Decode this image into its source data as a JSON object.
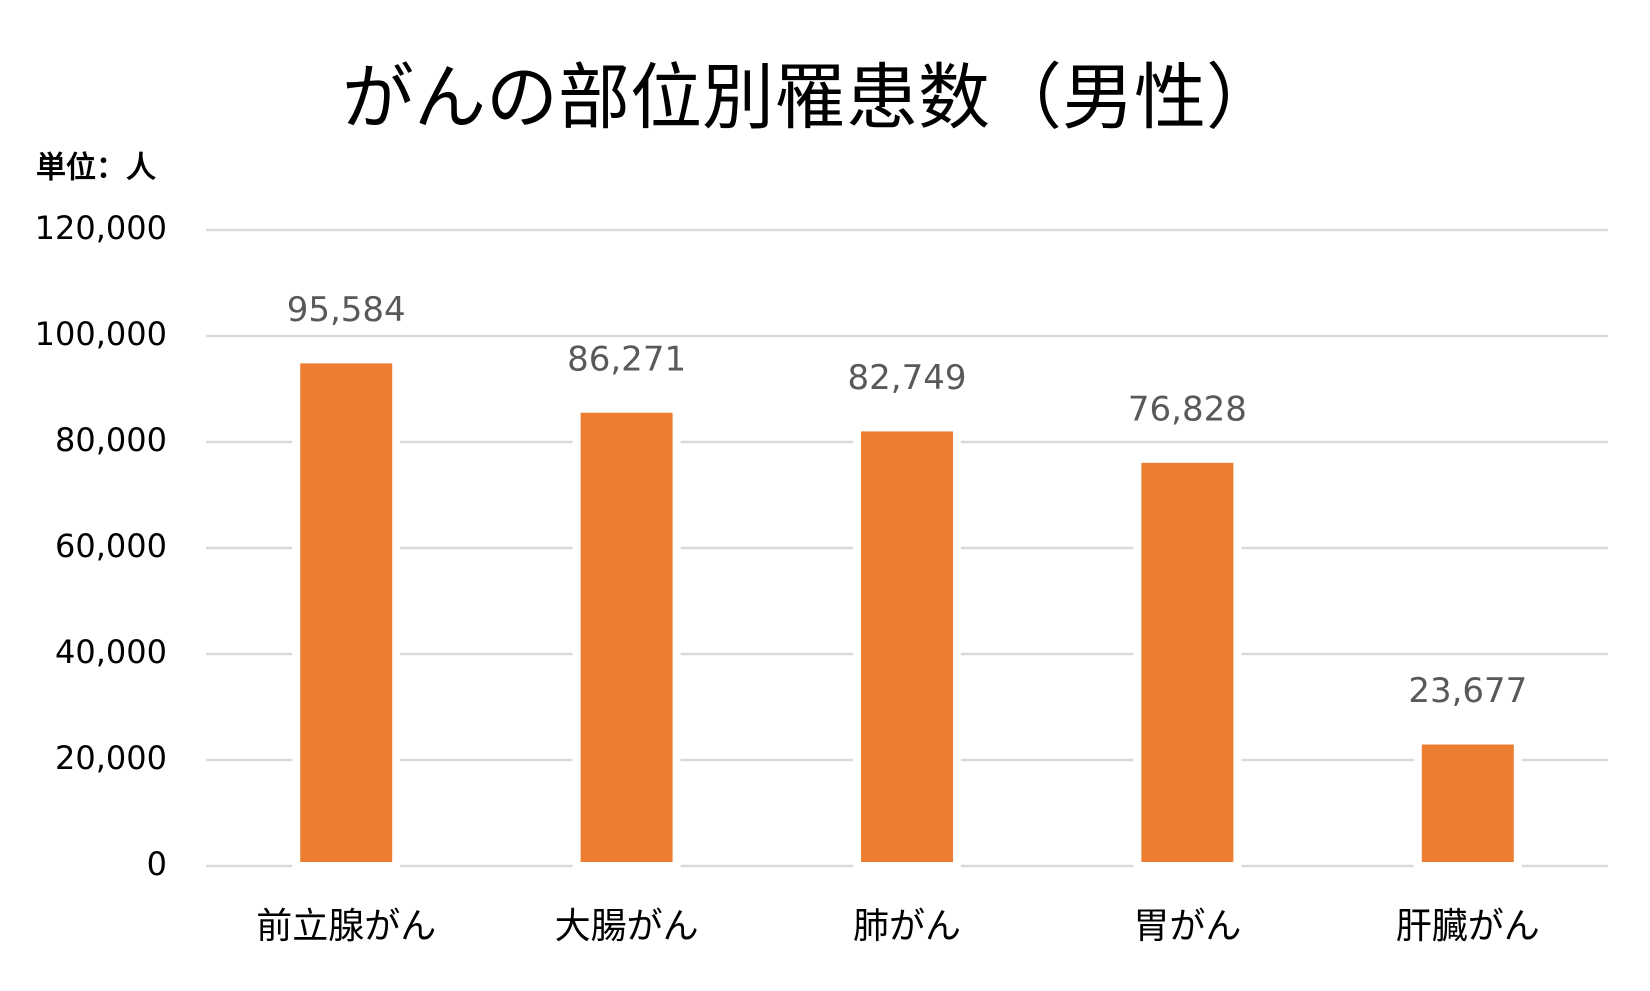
{
  "chart_data": {
    "type": "bar",
    "title": "がんの部位別罹患数（男性）",
    "y_unit_label": "単位：人",
    "categories": [
      "前立腺がん",
      "大腸がん",
      "肺がん",
      "胃がん",
      "肝臓がん"
    ],
    "values": [
      95584,
      86271,
      82749,
      76828,
      23677
    ],
    "value_labels": [
      "95,584",
      "86,271",
      "82,749",
      "76,828",
      "23,677"
    ],
    "color": "#ed7d31",
    "ylim": [
      0,
      120000
    ],
    "yticks": [
      0,
      {
        "value": 20000,
        "label": "20,000"
      },
      {
        "value": 40000,
        "label": "40,000"
      },
      {
        "value": 60000,
        "label": "60,000"
      },
      {
        "value": 80000,
        "label": "80,000"
      },
      {
        "value": 100000,
        "label": "100,000"
      },
      {
        "value": 120000,
        "label": "120,000"
      }
    ],
    "grid": true
  }
}
